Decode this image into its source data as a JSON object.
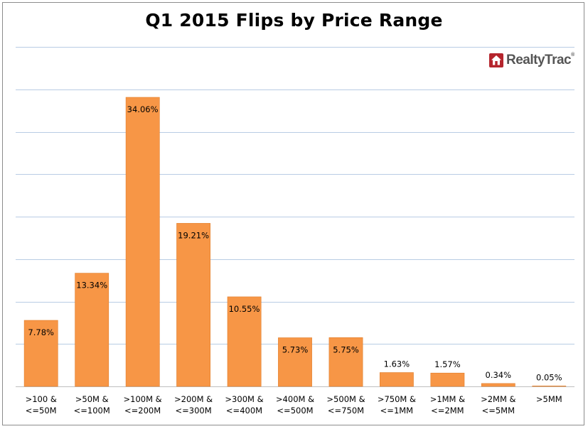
{
  "logo": {
    "text": "RealtyTrac",
    "mark_icon": "house-icon",
    "mark_color": "#b5252d"
  },
  "colors": {
    "bar": "#f79646",
    "bar_edge": "#e07d2a",
    "grid": "#b8cce4",
    "axis": "#bfbfbf"
  },
  "chart_data": {
    "type": "bar",
    "title": "Q1 2015 Flips by Price Range",
    "xlabel": "",
    "ylabel": "",
    "categories": [
      [
        ">100 &",
        "<=50M"
      ],
      [
        ">50M &",
        "<=100M"
      ],
      [
        ">100M &",
        "<=200M"
      ],
      [
        ">200M &",
        "<=300M"
      ],
      [
        ">300M &",
        "<=400M"
      ],
      [
        ">400M &",
        "<=500M"
      ],
      [
        ">500M &",
        "<=750M"
      ],
      [
        ">750M &",
        "<=1MM"
      ],
      [
        ">1MM &",
        "<=2MM"
      ],
      [
        ">2MM &",
        "<=5MM"
      ],
      [
        ">5MM"
      ]
    ],
    "values": [
      7.78,
      13.34,
      34.06,
      19.21,
      10.55,
      5.73,
      5.75,
      1.63,
      1.57,
      0.34,
      0.05
    ],
    "data_labels": [
      "7.78%",
      "13.34%",
      "34.06%",
      "19.21%",
      "10.55%",
      "5.73%",
      "5.75%",
      "1.63%",
      "1.57%",
      "0.34%",
      "0.05%"
    ],
    "ylim": [
      0,
      40
    ],
    "gridlines": [
      0,
      5,
      10,
      15,
      20,
      25,
      30,
      35,
      40
    ],
    "grid": true,
    "legend": "none"
  }
}
